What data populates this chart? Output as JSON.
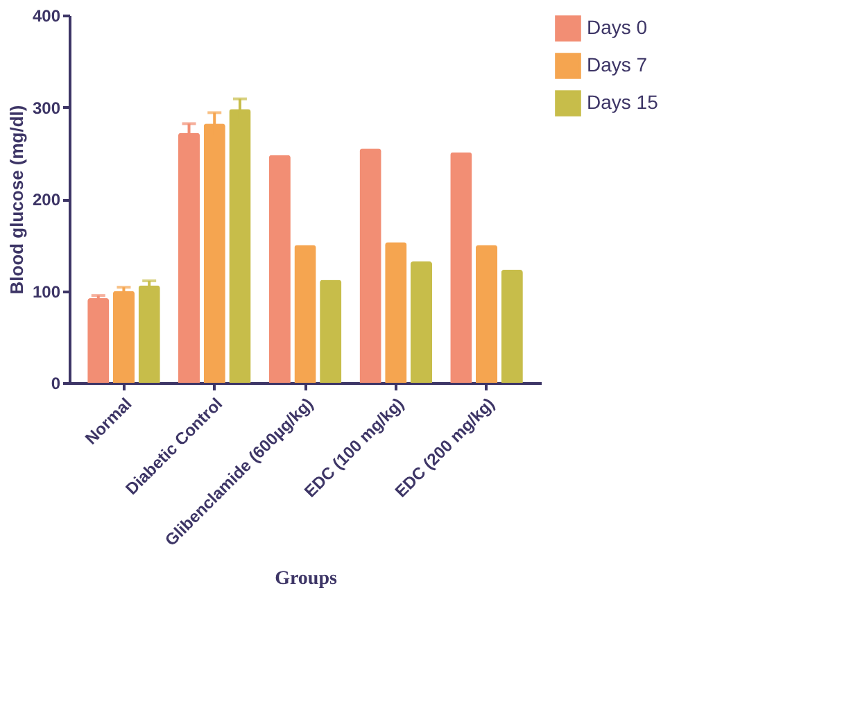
{
  "chart_data": {
    "type": "bar",
    "categories": [
      "Normal",
      "Diabetic Control",
      "Glibenclamide (600µg/kg)",
      "EDC (100 mg/kg)",
      "EDC (200 mg/kg)"
    ],
    "series": [
      {
        "name": "Days 0",
        "color": "#f28e74",
        "values": [
          92,
          272,
          248,
          255,
          251
        ],
        "errors": [
          3,
          10,
          null,
          null,
          null
        ]
      },
      {
        "name": "Days 7",
        "color": "#f5a550",
        "values": [
          100,
          282,
          150,
          153,
          150
        ],
        "errors": [
          4,
          12,
          null,
          null,
          null
        ]
      },
      {
        "name": "Days 15",
        "color": "#c7bd4a",
        "values": [
          106,
          298,
          112,
          132,
          123
        ],
        "errors": [
          5,
          11,
          null,
          null,
          null
        ]
      }
    ],
    "xlabel": "Groups",
    "ylabel": "Blood glucose (mg/dl)",
    "ylim": [
      0,
      400
    ],
    "yticks": [
      0,
      100,
      200,
      300,
      400
    ],
    "grid": false,
    "legend": "top right"
  }
}
